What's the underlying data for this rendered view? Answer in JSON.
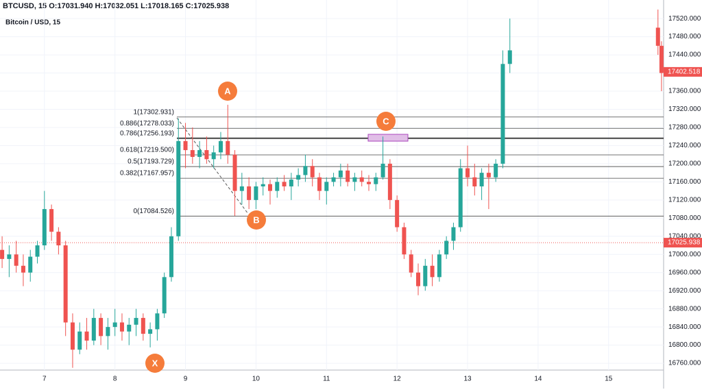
{
  "chart_data": {
    "type": "candlestick",
    "title": "BTCUSD, 15 O:17031.940 H:17032.051 L:17018.165 C:17025.938",
    "subtitle": "Bitcoin / USD, 15",
    "x": [
      6.4,
      6.5,
      6.6,
      6.7,
      6.8,
      6.9,
      7.0,
      7.1,
      7.2,
      7.3,
      7.4,
      7.5,
      7.6,
      7.7,
      7.8,
      7.9,
      8.0,
      8.1,
      8.2,
      8.3,
      8.4,
      8.5,
      8.6,
      8.7,
      8.8,
      8.9,
      9.0,
      9.1,
      9.2,
      9.3,
      9.4,
      9.5,
      9.6,
      9.7,
      9.8,
      9.9,
      10.0,
      10.1,
      10.2,
      10.3,
      10.4,
      10.5,
      10.6,
      10.7,
      10.8,
      10.9,
      11.0,
      11.1,
      11.2,
      11.3,
      11.4,
      11.5,
      11.6,
      11.7,
      11.8,
      11.9,
      12.0,
      12.1,
      12.2,
      12.3,
      12.4,
      12.5,
      12.6,
      12.7,
      12.8,
      12.9,
      13.0,
      13.1,
      13.2,
      13.3,
      13.4,
      13.5,
      13.6,
      15.7,
      15.75
    ],
    "open": [
      17010,
      16990,
      17000,
      16975,
      16960,
      16995,
      17020,
      17100,
      17050,
      17020,
      16850,
      16790,
      16830,
      16810,
      16860,
      16820,
      16840,
      16850,
      16830,
      16845,
      16860,
      16825,
      16835,
      16870,
      16950,
      17040,
      17250,
      17230,
      17215,
      17230,
      17210,
      17225,
      17250,
      17220,
      17140,
      17150,
      17120,
      17150,
      17155,
      17140,
      17160,
      17150,
      17165,
      17175,
      17195,
      17170,
      17140,
      17160,
      17170,
      17185,
      17160,
      17170,
      17160,
      17155,
      17170,
      17200,
      17120,
      17060,
      17000,
      16960,
      16930,
      16975,
      16950,
      17000,
      17030,
      17060,
      17190,
      17170,
      17150,
      17180,
      17170,
      17200,
      17420,
      17500,
      17460
    ],
    "high": [
      17040,
      17020,
      17030,
      17000,
      17010,
      17030,
      17140,
      17110,
      17060,
      17030,
      16870,
      16850,
      16860,
      16880,
      16870,
      16860,
      16880,
      16870,
      16860,
      16880,
      16870,
      16850,
      16880,
      16960,
      17060,
      17300,
      17290,
      17280,
      17250,
      17260,
      17240,
      17270,
      17330,
      17230,
      17180,
      17170,
      17160,
      17170,
      17165,
      17170,
      17175,
      17180,
      17190,
      17220,
      17210,
      17180,
      17170,
      17180,
      17200,
      17200,
      17180,
      17185,
      17175,
      17180,
      17260,
      17210,
      17130,
      17070,
      17010,
      16980,
      16990,
      17000,
      17010,
      17040,
      17070,
      17210,
      17240,
      17200,
      17190,
      17200,
      17210,
      17450,
      17520,
      17540,
      17470
    ],
    "low": [
      16970,
      16950,
      16960,
      16930,
      16940,
      16980,
      17010,
      17030,
      17000,
      16820,
      16750,
      16780,
      16790,
      16800,
      16800,
      16790,
      16820,
      16810,
      16800,
      16820,
      16810,
      16795,
      16810,
      16860,
      16940,
      17030,
      17190,
      17200,
      17190,
      17200,
      17190,
      17210,
      17200,
      17085,
      17110,
      17100,
      17100,
      17130,
      17110,
      17125,
      17140,
      17120,
      17150,
      17160,
      17150,
      17120,
      17110,
      17150,
      17150,
      17150,
      17140,
      17150,
      17140,
      17140,
      17165,
      17100,
      17050,
      16990,
      16950,
      16910,
      16920,
      16930,
      16940,
      16990,
      17010,
      17050,
      17150,
      17130,
      17120,
      17100,
      17160,
      17190,
      17400,
      17440,
      17360
    ],
    "close": [
      16990,
      17000,
      16975,
      16960,
      16995,
      17020,
      17100,
      17050,
      17020,
      16850,
      16790,
      16830,
      16810,
      16860,
      16820,
      16840,
      16850,
      16830,
      16845,
      16860,
      16825,
      16835,
      16870,
      16950,
      17040,
      17250,
      17230,
      17215,
      17230,
      17210,
      17225,
      17250,
      17220,
      17140,
      17150,
      17120,
      17150,
      17155,
      17140,
      17160,
      17150,
      17165,
      17175,
      17195,
      17170,
      17140,
      17160,
      17170,
      17185,
      17160,
      17170,
      17160,
      17155,
      17170,
      17200,
      17120,
      17060,
      17000,
      16960,
      16930,
      16975,
      16950,
      17000,
      17030,
      17060,
      17190,
      17170,
      17150,
      17180,
      17170,
      17200,
      17420,
      17450,
      17460,
      17400
    ],
    "up_color": "#26a69a",
    "down_color": "#ef5350",
    "xlim": [
      6.37,
      15.78
    ],
    "xticks": [
      7,
      8,
      9,
      10,
      11,
      12,
      13,
      14,
      15
    ],
    "ylim": [
      16745,
      17561
    ],
    "yticks": [
      {
        "value": 16760,
        "label": "16760.000"
      },
      {
        "value": 16800,
        "label": "16800.000"
      },
      {
        "value": 16840,
        "label": "16840.000"
      },
      {
        "value": 16880,
        "label": "16880.000"
      },
      {
        "value": 16920,
        "label": "16920.000"
      },
      {
        "value": 16960,
        "label": "16960.000"
      },
      {
        "value": 17000,
        "label": "17000.000"
      },
      {
        "value": 17040,
        "label": "17040.000"
      },
      {
        "value": 17080,
        "label": "17080.000"
      },
      {
        "value": 17120,
        "label": "17120.000"
      },
      {
        "value": 17160,
        "label": "17160.000"
      },
      {
        "value": 17200,
        "label": "17200.000"
      },
      {
        "value": 17240,
        "label": "17240.000"
      },
      {
        "value": 17280,
        "label": "17280.000"
      },
      {
        "value": 17320,
        "label": "17320.000"
      },
      {
        "value": 17360,
        "label": "17360.000"
      },
      {
        "value": 17400,
        "label": "17400.000"
      },
      {
        "value": 17440,
        "label": "17440.000"
      },
      {
        "value": 17480,
        "label": "17480.000"
      },
      {
        "value": 17520,
        "label": "17520.000"
      }
    ],
    "grid": true,
    "fib_levels": [
      {
        "value": 17302.931,
        "label": "1(17302.931)"
      },
      {
        "value": 17278.033,
        "label": "0.886(17278.033)"
      },
      {
        "value": 17256.193,
        "label": "0.786(17256.193)"
      },
      {
        "value": 17219.5,
        "label": "0.618(17219.500)"
      },
      {
        "value": 17193.729,
        "label": "0.5(17193.729)"
      },
      {
        "value": 17167.957,
        "label": "0.382(17167.957)"
      },
      {
        "value": 17084.526,
        "label": "0(17084.526)"
      }
    ],
    "price_tags": [
      17402.518,
      17025.938
    ],
    "points": [
      "A",
      "B",
      "C",
      "X"
    ]
  }
}
